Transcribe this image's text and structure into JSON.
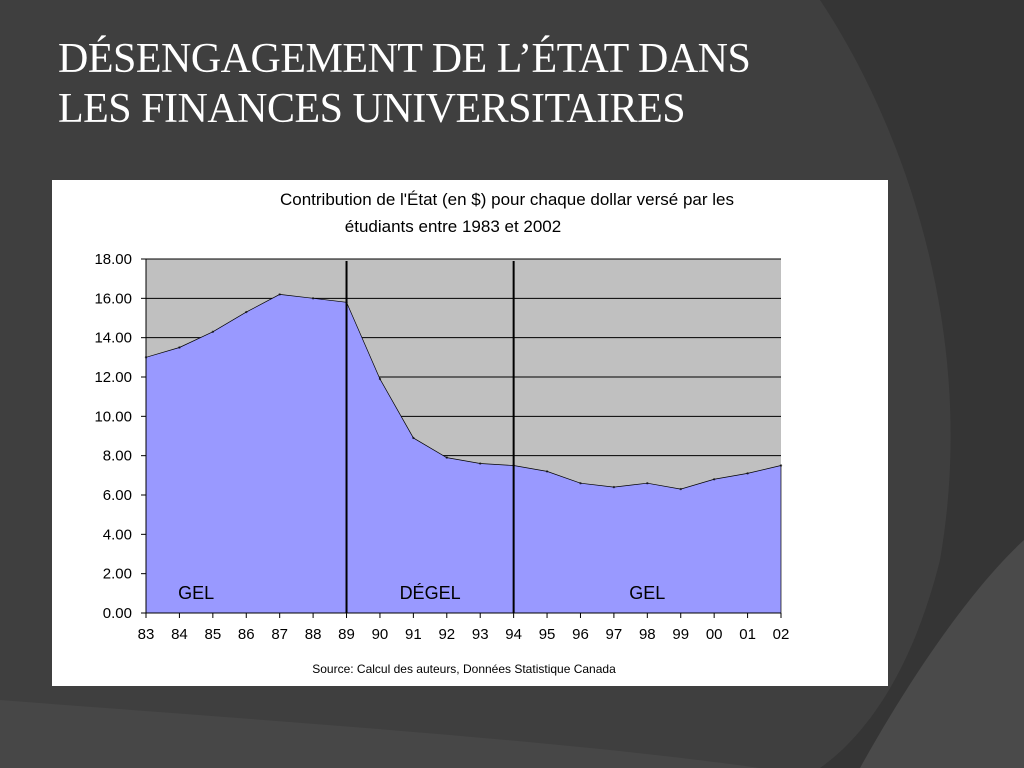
{
  "slide": {
    "title_line1": "DÉSENGAGEMENT DE L’ÉTAT DANS",
    "title_line2": "LES FINANCES UNIVERSITAIRES"
  },
  "colors": {
    "background": "#3f3f3f",
    "plot_area": "#c0c0c0",
    "area_fill": "#9999ff",
    "gridline": "#000000"
  },
  "chart_data": {
    "type": "area",
    "title_line1": "Contribution de l'État (en $) pour chaque dollar versé par les",
    "title_line2": "étudiants entre 1983 et 2002",
    "x": [
      "83",
      "84",
      "85",
      "86",
      "87",
      "88",
      "89",
      "90",
      "91",
      "92",
      "93",
      "94",
      "95",
      "96",
      "97",
      "98",
      "99",
      "00",
      "01",
      "02"
    ],
    "values": [
      13.0,
      13.5,
      14.3,
      15.3,
      16.2,
      16.0,
      15.8,
      11.9,
      8.9,
      7.9,
      7.6,
      7.5,
      7.2,
      6.6,
      6.4,
      6.6,
      6.3,
      6.8,
      7.1,
      7.5
    ],
    "ylim": [
      0,
      18
    ],
    "yticks": [
      "0.00",
      "2.00",
      "4.00",
      "6.00",
      "8.00",
      "10.00",
      "12.00",
      "14.00",
      "16.00",
      "18.00"
    ],
    "grid": true,
    "dividers": [
      "89",
      "94"
    ],
    "zones": [
      {
        "label": "GEL",
        "center": 1.5
      },
      {
        "label": "DÉGEL",
        "center": 8.5
      },
      {
        "label": "GEL",
        "center": 15
      }
    ],
    "source": "Source: Calcul des auteurs, Données Statistique Canada"
  }
}
